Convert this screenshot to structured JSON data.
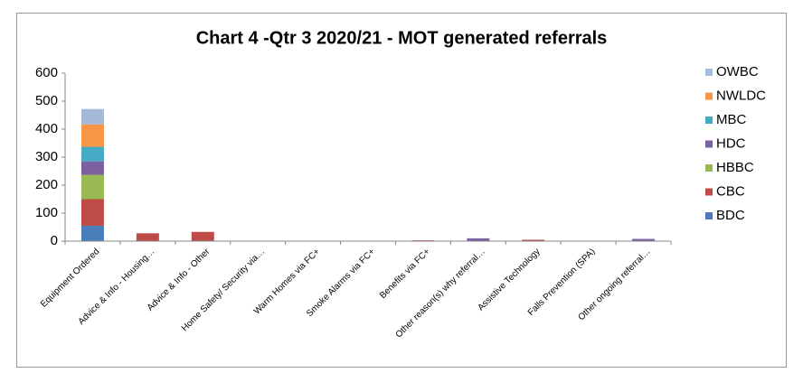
{
  "chart_data": {
    "type": "stacked_bar",
    "title": "Chart 4 -Qtr 3 2020/21 - MOT generated referrals",
    "categories": [
      "Equipment Ordered",
      "Advice & Info - Housing…",
      "Advice & Info - Other",
      "Home Safety/ Security via…",
      "Warm Homes via FC+",
      "Smoke Alarms via FC+",
      "Benefits via FC+",
      "Other reason(s) why referral…",
      "Assistive Technology",
      "Falls Prevention (SPA)",
      "Other ongoing referral…"
    ],
    "series": [
      {
        "name": "BDC",
        "color": "#4a7ebb",
        "values": [
          55,
          0,
          0,
          0,
          0,
          0,
          0,
          0,
          0,
          0,
          0
        ]
      },
      {
        "name": "CBC",
        "color": "#be4b48",
        "values": [
          95,
          28,
          33,
          0,
          1,
          1,
          3,
          0,
          5,
          0,
          0
        ]
      },
      {
        "name": "HBBC",
        "color": "#98b954",
        "values": [
          87,
          0,
          0,
          0,
          0,
          0,
          0,
          0,
          0,
          0,
          0
        ]
      },
      {
        "name": "HDC",
        "color": "#7d60a0",
        "values": [
          48,
          0,
          0,
          0,
          0,
          0,
          0,
          10,
          0,
          0,
          8
        ]
      },
      {
        "name": "MBC",
        "color": "#46aac5",
        "values": [
          52,
          0,
          0,
          0,
          0,
          0,
          0,
          0,
          0,
          0,
          0
        ]
      },
      {
        "name": "NWLDC",
        "color": "#f79646",
        "values": [
          80,
          0,
          0,
          0,
          0,
          0,
          0,
          0,
          0,
          0,
          0
        ]
      },
      {
        "name": "OWBC",
        "color": "#a5b9d9",
        "values": [
          55,
          0,
          0,
          0,
          0,
          0,
          0,
          0,
          0,
          0,
          0
        ]
      }
    ],
    "ylim": [
      0,
      600
    ],
    "yticks": [
      0,
      100,
      200,
      300,
      400,
      500,
      600
    ],
    "grid": false,
    "legend": "right"
  }
}
